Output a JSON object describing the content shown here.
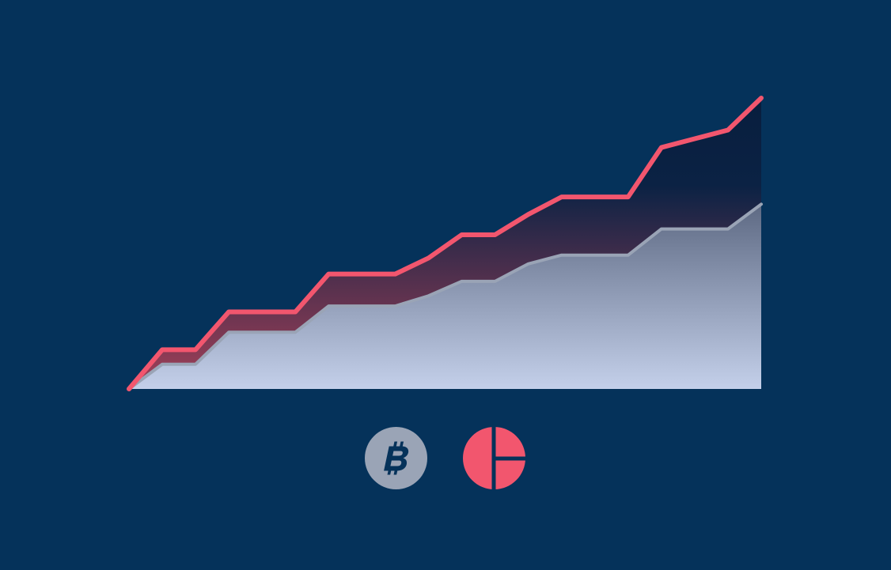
{
  "chart_data": {
    "type": "area",
    "title": "",
    "xlabel": "",
    "ylabel": "",
    "x": [
      0,
      1,
      2,
      3,
      4,
      5,
      6,
      7,
      8,
      9,
      10,
      11,
      12,
      13,
      14,
      15,
      16,
      17,
      18,
      19
    ],
    "xlim": [
      0,
      19
    ],
    "ylim": [
      0,
      100
    ],
    "grid": false,
    "legend": "bottom-center",
    "series": [
      {
        "icon": "brand-icon",
        "color": "#f2566e",
        "values": [
          0,
          13.5,
          13.5,
          26.5,
          26.5,
          26.5,
          39.5,
          39.5,
          39.5,
          45,
          53,
          53,
          60,
          66,
          66,
          66,
          83,
          86,
          89,
          100
        ]
      },
      {
        "icon": "bitcoin-icon",
        "color": "#9aa4b6",
        "values": [
          0,
          8.5,
          8.5,
          19.5,
          19.5,
          19.5,
          28.5,
          28.5,
          28.5,
          32,
          37,
          37,
          43,
          46,
          46,
          46,
          55,
          55,
          55,
          63.5
        ]
      }
    ]
  },
  "legend": {
    "bitcoin_icon": "bitcoin-icon",
    "brand_icon": "brand-icon"
  },
  "colors": {
    "background": "#05325a",
    "line_top": "#f2566e",
    "line_bottom": "#9aa4b6",
    "fill_bottom_top": "#5d6983",
    "fill_bottom_bottom": "#c4d0ea",
    "fill_top_top": "#081e3e",
    "fill_top_bottom": "#a44058"
  }
}
